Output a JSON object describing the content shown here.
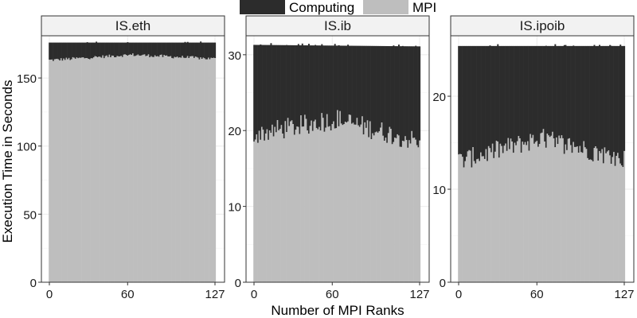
{
  "chart_data": {
    "type": "bar",
    "stacked": true,
    "facet_variable": "app.network",
    "legend": {
      "placement": "top",
      "entries": [
        {
          "name": "Computing",
          "color": "#2c2c2c"
        },
        {
          "name": "MPI",
          "color": "#bebebe"
        }
      ]
    },
    "xlabel": "Number of MPI Ranks",
    "ylabel": "Execution Time in Seconds",
    "x_range": [
      0,
      127
    ],
    "x_ticks": [
      "0",
      "60",
      "127"
    ],
    "grid": true,
    "panels": [
      {
        "title": "IS.eth",
        "ylim": [
          0,
          181
        ],
        "y_ticks": [
          0,
          50,
          100,
          150
        ],
        "total_start": 176,
        "total_end": 176,
        "mpi_start": 163,
        "mpi_mid": 167,
        "mpi_end": 164,
        "mpi_noise": 1.2,
        "spike_amp": 1.2
      },
      {
        "title": "IS.ib",
        "ylim": [
          0,
          32.5
        ],
        "y_ticks": [
          0,
          10,
          20,
          30
        ],
        "total_start": 31.3,
        "total_end": 31.1,
        "mpi_start": 19.5,
        "mpi_mid": 21.5,
        "mpi_end": 18.5,
        "mpi_noise": 1.4,
        "spike_amp": 0.25
      },
      {
        "title": "IS.ipoib",
        "ylim": [
          0,
          26.5
        ],
        "y_ticks": [
          0,
          10,
          20
        ],
        "total_start": 25.4,
        "total_end": 25.4,
        "mpi_start": 13.0,
        "mpi_mid": 15.5,
        "mpi_end": 13.2,
        "mpi_noise": 1.1,
        "spike_amp": 0.2
      }
    ]
  }
}
